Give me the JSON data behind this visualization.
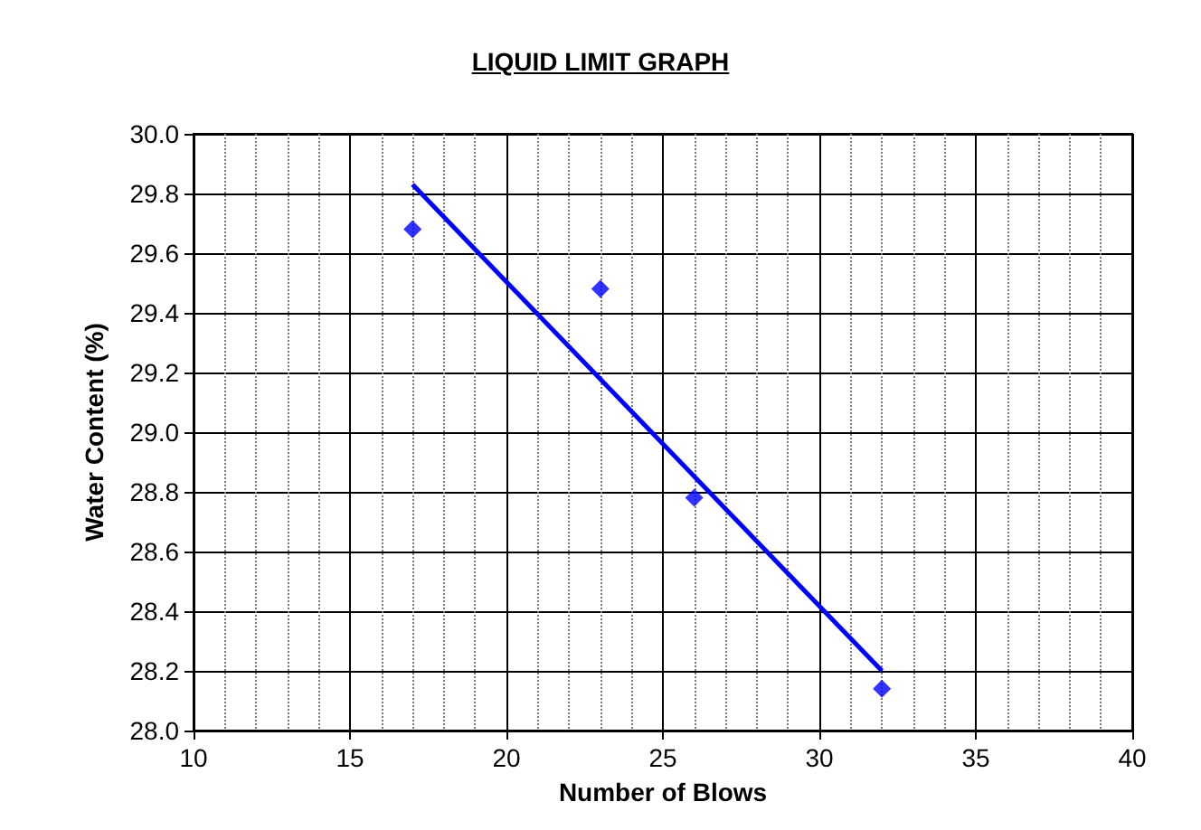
{
  "chart_data": {
    "type": "scatter",
    "title": "LIQUID LIMIT GRAPH",
    "xlabel": "Number of Blows",
    "ylabel": "Water Content (%)",
    "series": [
      {
        "color": "#0000ff",
        "marker": "diamond",
        "x": [
          17,
          23,
          26,
          32
        ],
        "values": [
          29.68,
          29.48,
          28.78,
          28.14
        ]
      },
      {
        "type": "line",
        "color": "#0000ff",
        "marker": "none",
        "x": [
          17,
          32
        ],
        "values": [
          29.83,
          28.2
        ]
      }
    ],
    "xlim": [
      10,
      40
    ],
    "xticks": [
      10,
      15,
      20,
      25,
      30,
      35,
      40
    ],
    "ylim": [
      28.0,
      30.0
    ],
    "yticks": [
      {
        "value": 28.0,
        "label": "28.0"
      },
      {
        "value": 28.2,
        "label": "28.2"
      },
      {
        "value": 28.4,
        "label": "28.4"
      },
      {
        "value": 28.6,
        "label": "28.6"
      },
      {
        "value": 28.8,
        "label": "28.8"
      },
      {
        "value": 29.0,
        "label": "29.0"
      },
      {
        "value": 29.2,
        "label": "29.2"
      },
      {
        "value": 29.4,
        "label": "29.4"
      },
      {
        "value": 29.6,
        "label": "29.6"
      },
      {
        "value": 29.8,
        "label": "29.8"
      },
      {
        "value": 30.0,
        "label": "30.0"
      }
    ],
    "grid": true
  }
}
